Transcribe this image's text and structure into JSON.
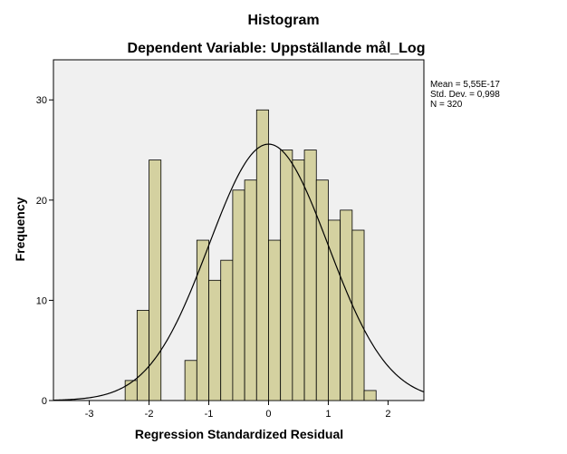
{
  "chart_data": {
    "type": "bar",
    "title": "Histogram",
    "subtitle": "Dependent Variable: Uppställande mål_Log",
    "xlabel": "Regression Standardized Residual",
    "ylabel": "Frequency",
    "xlim": [
      -3.6,
      2.6
    ],
    "ylim": [
      0,
      34
    ],
    "x_ticks": [
      -3,
      -2,
      -1,
      0,
      1,
      2
    ],
    "y_ticks": [
      0,
      10,
      20,
      30
    ],
    "bin_width": 0.2,
    "bin_starts": [
      -2.4,
      -2.2,
      -2.0,
      -1.4,
      -1.2,
      -1.0,
      -0.8,
      -0.6,
      -0.4,
      -0.2,
      0.0,
      0.2,
      0.4,
      0.6,
      0.8,
      1.0,
      1.2,
      1.4,
      1.6
    ],
    "values": [
      2,
      9,
      24,
      4,
      16,
      12,
      14,
      21,
      22,
      29,
      16,
      25,
      24,
      25,
      22,
      18,
      19,
      17,
      1
    ],
    "normal_curve": {
      "mean": 0.0,
      "std": 0.998,
      "n": 320
    },
    "stats": [
      "Mean = 5,55E-17",
      "Std. Dev. = 0,998",
      "N = 320"
    ],
    "colors": {
      "bar_fill": "#d4d1a0",
      "bar_stroke": "#000000",
      "plot_bg": "#f0f0f0",
      "curve": "#000000"
    },
    "grid": false,
    "legend": "none"
  }
}
